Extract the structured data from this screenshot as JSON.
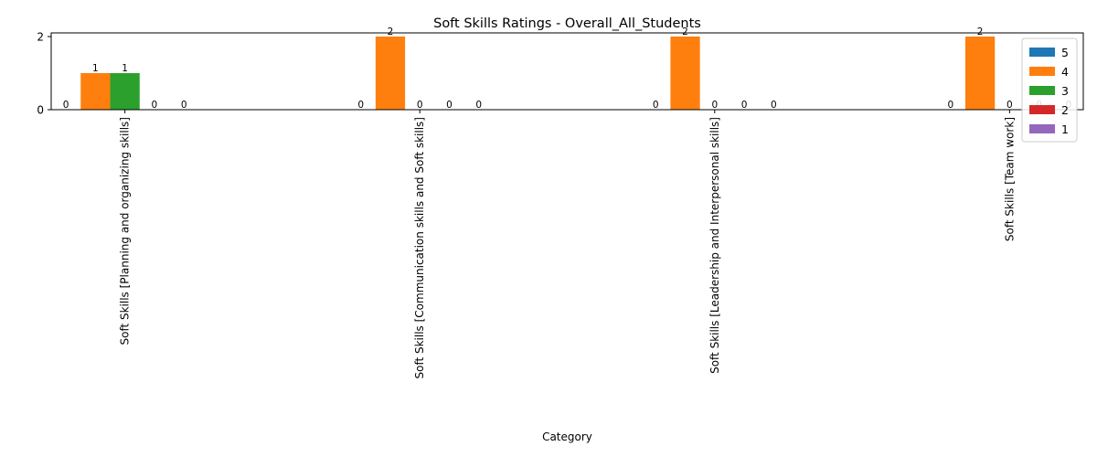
{
  "chart_data": {
    "type": "bar",
    "title": "Soft  Skills Ratings - Overall_All_Students",
    "xlabel": "Category",
    "ylabel": "",
    "categories": [
      "Soft  Skills [Planning and organizing skills]",
      "Soft  Skills [Communication skills and Soft skills]",
      "Soft  Skills [Leadership and Interpersonal skills]",
      "Soft  Skills [Team work]"
    ],
    "series": [
      {
        "name": "5",
        "color": "#1f77b4",
        "values": [
          0,
          0,
          0,
          0
        ]
      },
      {
        "name": "4",
        "color": "#ff7f0e",
        "values": [
          1,
          2,
          2,
          2
        ]
      },
      {
        "name": "3",
        "color": "#2ca02c",
        "values": [
          1,
          0,
          0,
          0
        ]
      },
      {
        "name": "2",
        "color": "#d62728",
        "values": [
          0,
          0,
          0,
          0
        ]
      },
      {
        "name": "1",
        "color": "#9467bd",
        "values": [
          0,
          0,
          0,
          0
        ]
      }
    ],
    "ylim": [
      0,
      2.1
    ],
    "yticks": [
      0,
      2
    ],
    "legend_position": "top-right",
    "grid": false,
    "data_labels": true
  }
}
